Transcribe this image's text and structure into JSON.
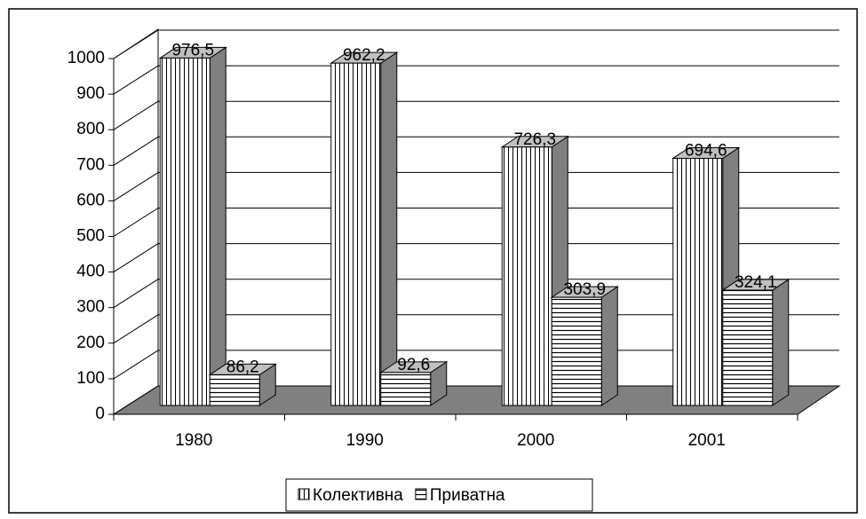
{
  "chart_data": {
    "type": "bar3d",
    "categories": [
      "1980",
      "1990",
      "2000",
      "2001"
    ],
    "series": [
      {
        "name": "Колективна",
        "color": "#ffffff",
        "pattern": "vertical",
        "values": [
          976.5,
          962.2,
          726.3,
          694.6
        ],
        "value_labels": [
          "976,5",
          "962,2",
          "726,3",
          "694,6"
        ]
      },
      {
        "name": "Приватна",
        "color": "#ffffff",
        "pattern": "horizontal",
        "values": [
          86.2,
          92.6,
          303.9,
          324.1
        ],
        "value_labels": [
          "86,2",
          "92,6",
          "303,9",
          "324,1"
        ]
      }
    ],
    "ylim": [
      0,
      1000
    ],
    "yticks": [
      0,
      100,
      200,
      300,
      400,
      500,
      600,
      700,
      800,
      900,
      1000
    ],
    "grid": true,
    "legend": "bottom"
  }
}
